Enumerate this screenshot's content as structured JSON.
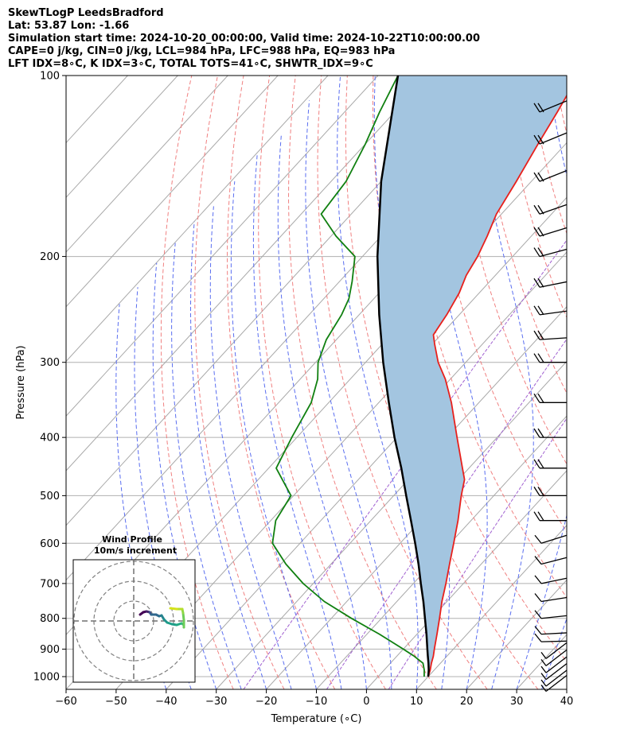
{
  "header": {
    "line1": "SkewTLogP LeedsBradford",
    "line2": "Lat: 53.87   Lon: -1.66",
    "line3": "Simulation start time: 2024-10-20_00:00:00, Valid time: 2024-10-22T10:00:00.00",
    "line4": "CAPE=0 j/kg, CIN=0 j/kg, LCL=984 hPa, LFC=988 hPa, EQ=983 hPa",
    "line5": "LFT IDX=8∘C, K IDX=3∘C, TOTAL TOTS=41∘C, SHWTR_IDX=9∘C"
  },
  "chart_data": {
    "type": "skewt-logp",
    "xlabel": "Temperature (∘C)",
    "ylabel": "Pressure (hPa)",
    "xlim": [
      -60,
      40
    ],
    "ylim": [
      1050,
      100
    ],
    "x_ticks": [
      "−60",
      "−50",
      "−40",
      "−30",
      "−20",
      "−10",
      "0",
      "10",
      "20",
      "30",
      "40"
    ],
    "x_tick_values": [
      -60,
      -50,
      -40,
      -30,
      -20,
      -10,
      0,
      10,
      20,
      30,
      40
    ],
    "y_ticks": [
      "1000",
      "900",
      "800",
      "700",
      "600",
      "500",
      "400",
      "300",
      "200",
      "100"
    ],
    "y_tick_values": [
      1000,
      900,
      800,
      700,
      600,
      500,
      400,
      300,
      200,
      100
    ],
    "grid": true,
    "series": [
      {
        "name": "temperature",
        "color": "#e8201c",
        "pressure": [
          1000,
          975,
          950,
          925,
          900,
          850,
          800,
          750,
          700,
          650,
          600,
          550,
          500,
          470,
          450,
          400,
          350,
          320,
          300,
          280,
          270,
          250,
          230,
          215,
          200,
          185,
          170,
          150,
          130,
          115,
          100
        ],
        "values": [
          10.0,
          9.2,
          8.2,
          7.3,
          6.2,
          4.0,
          1.6,
          -1.0,
          -3.5,
          -6.3,
          -9.3,
          -12.6,
          -16.5,
          -18.8,
          -21.3,
          -28.0,
          -35.5,
          -41.0,
          -45.5,
          -49.5,
          -51.5,
          -52.5,
          -54.0,
          -55.8,
          -57.0,
          -58.8,
          -61.0,
          -63.0,
          -65.5,
          -67.5,
          -70.0
        ]
      },
      {
        "name": "dewpoint",
        "color": "#108010",
        "pressure": [
          1000,
          975,
          950,
          925,
          900,
          850,
          800,
          750,
          700,
          650,
          600,
          550,
          500,
          450,
          400,
          350,
          320,
          300,
          275,
          250,
          235,
          220,
          200,
          185,
          170,
          150,
          130,
          115,
          100
        ],
        "values": [
          9.2,
          8.0,
          6.5,
          3.5,
          0.0,
          -7.5,
          -16.0,
          -24.5,
          -32.0,
          -39.0,
          -45.5,
          -49.0,
          -50.5,
          -58.5,
          -61.0,
          -63.5,
          -66.5,
          -69.5,
          -72.0,
          -73.5,
          -75.0,
          -77.5,
          -81.5,
          -89.0,
          -96.0,
          -97.0,
          -100.0,
          -103.0,
          -106.0
        ]
      },
      {
        "name": "parcel",
        "color": "#000000",
        "pressure": [
          1000,
          975,
          950,
          925,
          900,
          850,
          800,
          750,
          700,
          650,
          600,
          550,
          500,
          450,
          400,
          350,
          300,
          250,
          200,
          150,
          100
        ],
        "values": [
          10.0,
          8.9,
          7.6,
          6.2,
          4.8,
          1.9,
          -1.3,
          -4.7,
          -8.5,
          -12.5,
          -17.0,
          -22.0,
          -27.5,
          -33.5,
          -40.5,
          -48.0,
          -56.5,
          -66.0,
          -77.0,
          -90.0,
          -106.0
        ]
      }
    ],
    "cape_fill_color": "#a3c5e0",
    "wind_barbs": {
      "pressure": [
        1020,
        1000,
        975,
        950,
        925,
        900,
        875,
        850,
        800,
        750,
        700,
        650,
        600,
        550,
        500,
        450,
        400,
        350,
        300,
        275,
        250,
        225,
        200,
        185,
        170,
        150,
        130,
        115
      ]
    },
    "inset": {
      "title": "Wind Profile",
      "subtitle": "10m/s increment"
    }
  }
}
